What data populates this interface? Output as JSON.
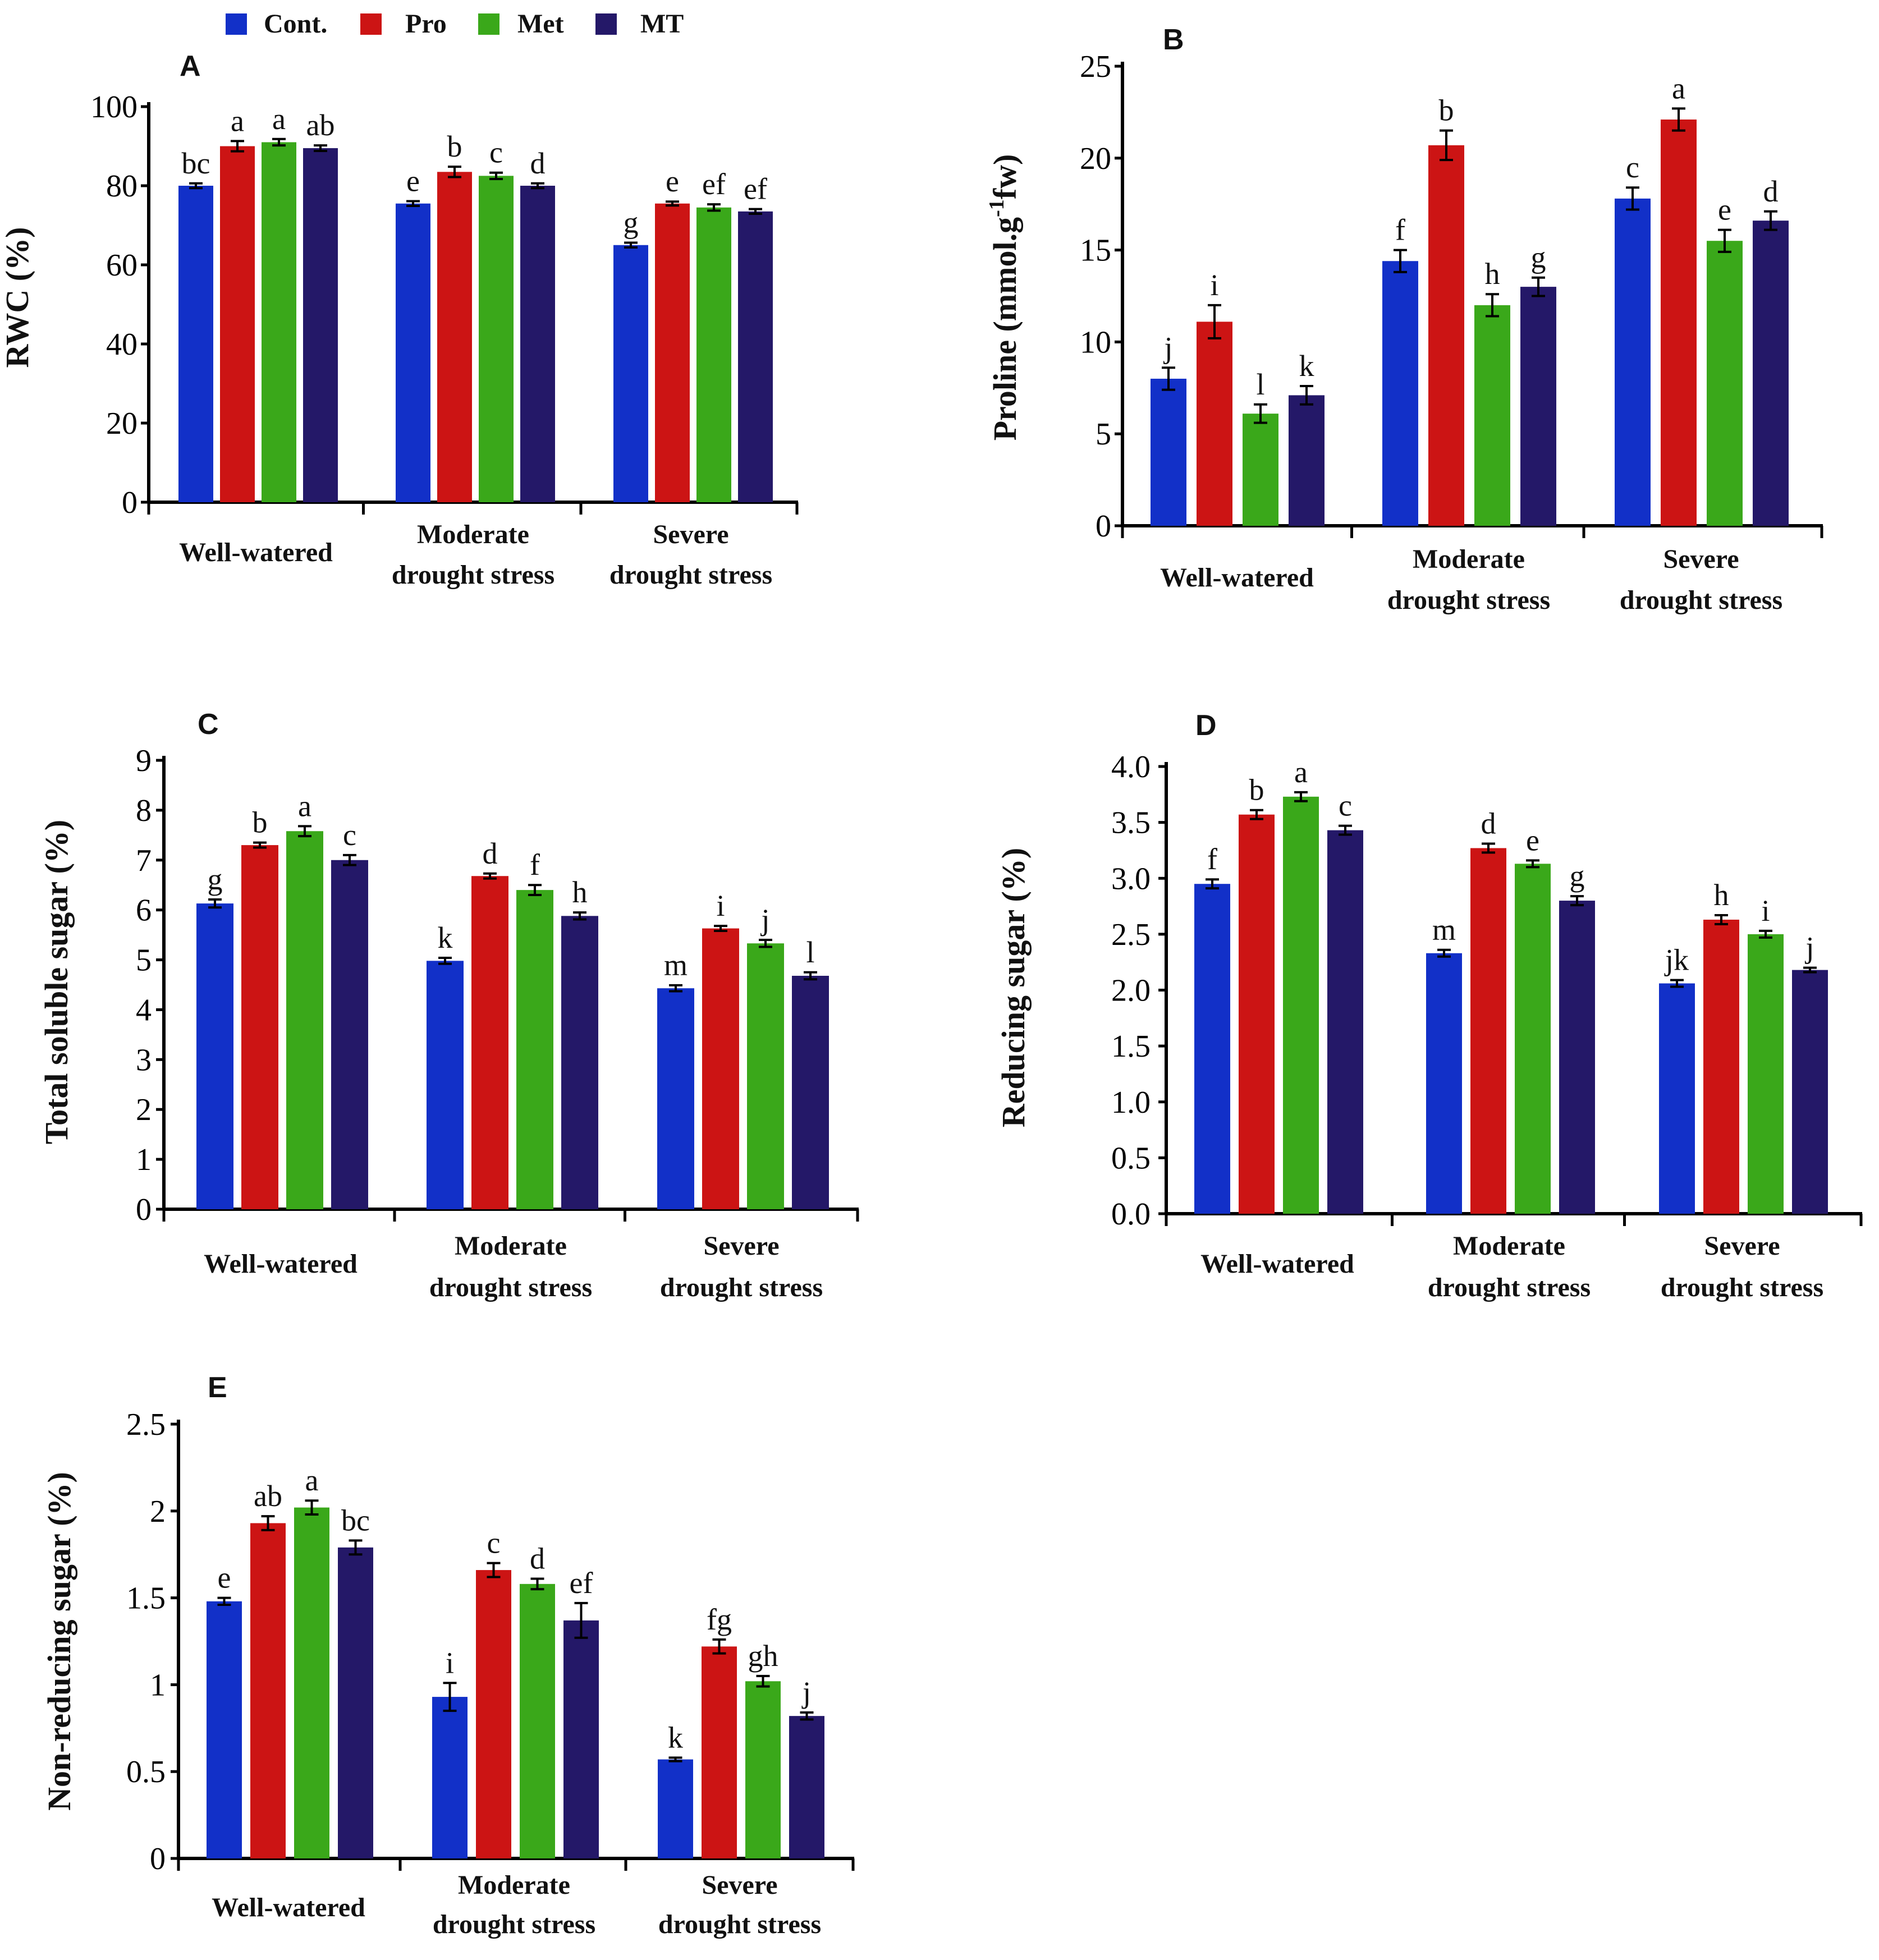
{
  "legend": [
    {
      "label": "Cont.",
      "color": "#1230c8"
    },
    {
      "label": "Pro",
      "color": "#cc1414"
    },
    {
      "label": "Met",
      "color": "#3aa81a"
    },
    {
      "label": "MT",
      "color": "#241868"
    }
  ],
  "chart_data": [
    {
      "id": "A",
      "type": "bar",
      "panel_label": "A",
      "ylabel": "RWC (%)",
      "categories": [
        [
          "Well-watered"
        ],
        [
          "Moderate",
          "drought stress"
        ],
        [
          "Severe",
          "drought stress"
        ]
      ],
      "ylim": [
        0,
        100
      ],
      "yticks": [
        "0",
        "20",
        "40",
        "60",
        "80",
        "100"
      ],
      "series": [
        {
          "name": "Cont.",
          "values": [
            80,
            75.5,
            65
          ],
          "errors": [
            0.6,
            0.6,
            0.6
          ],
          "letters": [
            "bc",
            "e",
            "g"
          ]
        },
        {
          "name": "Pro",
          "values": [
            90,
            83.5,
            75.5
          ],
          "errors": [
            1.3,
            1.3,
            0.5
          ],
          "letters": [
            "a",
            "b",
            "e"
          ]
        },
        {
          "name": "Met",
          "values": [
            91,
            82.5,
            74.5
          ],
          "errors": [
            0.8,
            0.8,
            0.8
          ],
          "letters": [
            "a",
            "c",
            "ef"
          ]
        },
        {
          "name": "MT",
          "values": [
            89.5,
            80,
            73.5
          ],
          "errors": [
            0.7,
            0.6,
            0.6
          ],
          "letters": [
            "ab",
            "d",
            "ef"
          ]
        }
      ]
    },
    {
      "id": "B",
      "type": "bar",
      "panel_label": "B",
      "ylabel": "Proline (mmol.g-1fw)",
      "ylabel_parts": [
        "Proline (mmol.g",
        "-1",
        "fw)"
      ],
      "categories": [
        [
          "Well-watered"
        ],
        [
          "Moderate",
          "drought stress"
        ],
        [
          "Severe",
          "drought stress"
        ]
      ],
      "ylim": [
        0,
        25
      ],
      "yticks": [
        "0",
        "5",
        "10",
        "15",
        "20",
        "25"
      ],
      "series": [
        {
          "name": "Cont.",
          "values": [
            8.0,
            14.4,
            17.8
          ],
          "errors": [
            0.6,
            0.6,
            0.6
          ],
          "letters": [
            "j",
            "f",
            "c"
          ]
        },
        {
          "name": "Pro",
          "values": [
            11.1,
            20.7,
            22.1
          ],
          "errors": [
            0.9,
            0.8,
            0.6
          ],
          "letters": [
            "i",
            "b",
            "a"
          ]
        },
        {
          "name": "Met",
          "values": [
            6.1,
            12.0,
            15.5
          ],
          "errors": [
            0.5,
            0.6,
            0.6
          ],
          "letters": [
            "l",
            "h",
            "e"
          ]
        },
        {
          "name": "MT",
          "values": [
            7.1,
            13.0,
            16.6
          ],
          "errors": [
            0.5,
            0.5,
            0.5
          ],
          "letters": [
            "k",
            "g",
            "d"
          ]
        }
      ]
    },
    {
      "id": "C",
      "type": "bar",
      "panel_label": "C",
      "ylabel": "Total soluble sugar (%)",
      "categories": [
        [
          "Well-watered"
        ],
        [
          "Moderate",
          "drought stress"
        ],
        [
          "Severe",
          "drought stress"
        ]
      ],
      "ylim": [
        0,
        9
      ],
      "yticks": [
        "0",
        "1",
        "2",
        "3",
        "4",
        "5",
        "6",
        "7",
        "8",
        "9"
      ],
      "series": [
        {
          "name": "Cont.",
          "values": [
            6.13,
            4.98,
            4.43
          ],
          "errors": [
            0.08,
            0.06,
            0.06
          ],
          "letters": [
            "g",
            "k",
            "m"
          ]
        },
        {
          "name": "Pro",
          "values": [
            7.3,
            6.68,
            5.63
          ],
          "errors": [
            0.05,
            0.05,
            0.05
          ],
          "letters": [
            "b",
            "d",
            "i"
          ]
        },
        {
          "name": "Met",
          "values": [
            7.58,
            6.4,
            5.33
          ],
          "errors": [
            0.1,
            0.1,
            0.07
          ],
          "letters": [
            "a",
            "f",
            "j"
          ]
        },
        {
          "name": "MT",
          "values": [
            7.0,
            5.88,
            4.68
          ],
          "errors": [
            0.1,
            0.07,
            0.07
          ],
          "letters": [
            "c",
            "h",
            "l"
          ]
        }
      ]
    },
    {
      "id": "D",
      "type": "bar",
      "panel_label": "D",
      "ylabel": "Reducing sugar (%)",
      "categories": [
        [
          "Well-watered"
        ],
        [
          "Moderate",
          "drought stress"
        ],
        [
          "Severe",
          "drought stress"
        ]
      ],
      "ylim": [
        0,
        4.0
      ],
      "yticks": [
        "0.0",
        "0.5",
        "1.0",
        "1.5",
        "2.0",
        "2.5",
        "3.0",
        "3.5",
        "4.0"
      ],
      "series": [
        {
          "name": "Cont.",
          "values": [
            2.95,
            2.33,
            2.06
          ],
          "errors": [
            0.04,
            0.03,
            0.03
          ],
          "letters": [
            "f",
            "m",
            "jk"
          ]
        },
        {
          "name": "Pro",
          "values": [
            3.57,
            3.27,
            2.63
          ],
          "errors": [
            0.04,
            0.04,
            0.04
          ],
          "letters": [
            "b",
            "d",
            "h"
          ]
        },
        {
          "name": "Met",
          "values": [
            3.73,
            3.13,
            2.5
          ],
          "errors": [
            0.04,
            0.03,
            0.03
          ],
          "letters": [
            "a",
            "e",
            "i"
          ]
        },
        {
          "name": "MT",
          "values": [
            3.43,
            2.8,
            2.18
          ],
          "errors": [
            0.04,
            0.04,
            0.02
          ],
          "letters": [
            "c",
            "g",
            "j"
          ]
        }
      ]
    },
    {
      "id": "E",
      "type": "bar",
      "panel_label": "E",
      "ylabel": "Non-reducing sugar (%)",
      "categories": [
        [
          "Well-watered"
        ],
        [
          "Moderate",
          "drought stress"
        ],
        [
          "Severe",
          "drought stress"
        ]
      ],
      "ylim": [
        0,
        2.5
      ],
      "yticks": [
        "0",
        "0.5",
        "1",
        "1.5",
        "2",
        "2.5"
      ],
      "series": [
        {
          "name": "Cont.",
          "values": [
            1.48,
            0.93,
            0.57
          ],
          "errors": [
            0.02,
            0.08,
            0.01
          ],
          "letters": [
            "e",
            "i",
            "k"
          ]
        },
        {
          "name": "Pro",
          "values": [
            1.93,
            1.66,
            1.22
          ],
          "errors": [
            0.04,
            0.04,
            0.04
          ],
          "letters": [
            "ab",
            "c",
            "fg"
          ]
        },
        {
          "name": "Met",
          "values": [
            2.02,
            1.58,
            1.02
          ],
          "errors": [
            0.04,
            0.03,
            0.03
          ],
          "letters": [
            "a",
            "d",
            "gh"
          ]
        },
        {
          "name": "MT",
          "values": [
            1.79,
            1.37,
            0.82
          ],
          "errors": [
            0.04,
            0.1,
            0.02
          ],
          "letters": [
            "bc",
            "ef",
            "j"
          ]
        }
      ]
    }
  ]
}
